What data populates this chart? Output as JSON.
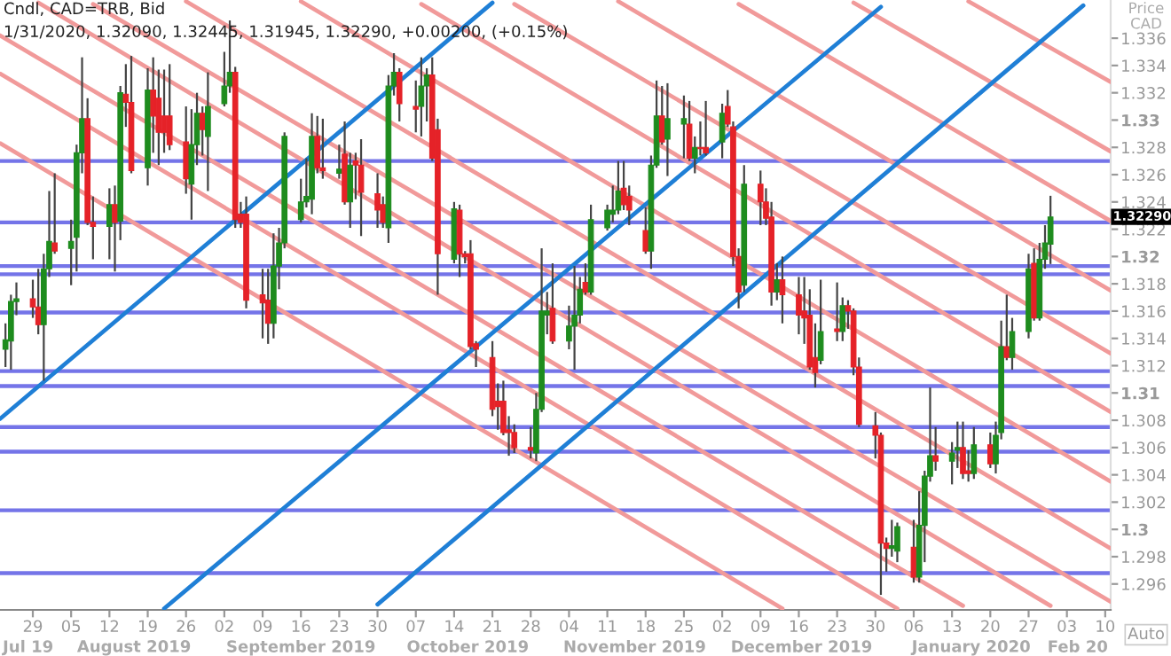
{
  "chart_data": {
    "type": "candlestick",
    "title": "Cndl, CAD=TRB, Bid",
    "subtitle": "1/31/2020, 1.32090, 1.32445, 1.31945, 1.32290, +0.00200, (+0.15%)",
    "ylabel": "Price\nCAD",
    "x": [
      "2019-07-24",
      "2019-07-25",
      "2019-07-26",
      "2019-07-29",
      "2019-07-30",
      "2019-07-31",
      "2019-08-01",
      "2019-08-02",
      "2019-08-05",
      "2019-08-06",
      "2019-08-07",
      "2019-08-08",
      "2019-08-09",
      "2019-08-12",
      "2019-08-13",
      "2019-08-14",
      "2019-08-15",
      "2019-08-16",
      "2019-08-19",
      "2019-08-20",
      "2019-08-21",
      "2019-08-22",
      "2019-08-23",
      "2019-08-26",
      "2019-08-27",
      "2019-08-28",
      "2019-08-29",
      "2019-08-30",
      "2019-09-02",
      "2019-09-03",
      "2019-09-04",
      "2019-09-05",
      "2019-09-06",
      "2019-09-09",
      "2019-09-10",
      "2019-09-11",
      "2019-09-12",
      "2019-09-13",
      "2019-09-16",
      "2019-09-17",
      "2019-09-18",
      "2019-09-19",
      "2019-09-20",
      "2019-09-23",
      "2019-09-24",
      "2019-09-25",
      "2019-09-26",
      "2019-09-27",
      "2019-09-30",
      "2019-10-01",
      "2019-10-02",
      "2019-10-03",
      "2019-10-04",
      "2019-10-07",
      "2019-10-08",
      "2019-10-09",
      "2019-10-10",
      "2019-10-11",
      "2019-10-14",
      "2019-10-15",
      "2019-10-16",
      "2019-10-17",
      "2019-10-18",
      "2019-10-21",
      "2019-10-22",
      "2019-10-23",
      "2019-10-24",
      "2019-10-25",
      "2019-10-28",
      "2019-10-29",
      "2019-10-30",
      "2019-10-31",
      "2019-11-01",
      "2019-11-04",
      "2019-11-05",
      "2019-11-06",
      "2019-11-07",
      "2019-11-08",
      "2019-11-11",
      "2019-11-12",
      "2019-11-13",
      "2019-11-14",
      "2019-11-15",
      "2019-11-18",
      "2019-11-19",
      "2019-11-20",
      "2019-11-21",
      "2019-11-22",
      "2019-11-25",
      "2019-11-26",
      "2019-11-27",
      "2019-11-28",
      "2019-11-29",
      "2019-12-02",
      "2019-12-03",
      "2019-12-04",
      "2019-12-05",
      "2019-12-06",
      "2019-12-09",
      "2019-12-10",
      "2019-12-11",
      "2019-12-12",
      "2019-12-13",
      "2019-12-16",
      "2019-12-17",
      "2019-12-18",
      "2019-12-19",
      "2019-12-20",
      "2019-12-23",
      "2019-12-24",
      "2019-12-25",
      "2019-12-26",
      "2019-12-27",
      "2019-12-30",
      "2019-12-31",
      "2020-01-01",
      "2020-01-02",
      "2020-01-03",
      "2020-01-06",
      "2020-01-07",
      "2020-01-08",
      "2020-01-09",
      "2020-01-10",
      "2020-01-13",
      "2020-01-14",
      "2020-01-15",
      "2020-01-16",
      "2020-01-17",
      "2020-01-20",
      "2020-01-21",
      "2020-01-22",
      "2020-01-23",
      "2020-01-24",
      "2020-01-27",
      "2020-01-28",
      "2020-01-29",
      "2020-01-30",
      "2020-01-31"
    ],
    "ohlc": [
      [
        1.3132,
        1.3151,
        1.3119,
        1.3139
      ],
      [
        1.3138,
        1.3172,
        1.3117,
        1.3167
      ],
      [
        1.3167,
        1.3181,
        1.3157,
        1.3169
      ],
      [
        1.3169,
        1.3183,
        1.3155,
        1.3163
      ],
      [
        1.3163,
        1.3191,
        1.3143,
        1.315
      ],
      [
        1.315,
        1.3202,
        1.3109,
        1.3191
      ],
      [
        1.3191,
        1.3248,
        1.3185,
        1.3211
      ],
      [
        1.321,
        1.3261,
        1.3202,
        1.3204
      ],
      [
        1.3206,
        1.3227,
        1.3179,
        1.3211
      ],
      [
        1.3214,
        1.3282,
        1.3189,
        1.3276
      ],
      [
        1.3276,
        1.3346,
        1.3261,
        1.3301
      ],
      [
        1.3301,
        1.3316,
        1.3223,
        1.3225
      ],
      [
        1.3225,
        1.3244,
        1.3198,
        1.3222
      ],
      [
        1.3222,
        1.325,
        1.3198,
        1.3238
      ],
      [
        1.3238,
        1.3252,
        1.3189,
        1.3225
      ],
      [
        1.3226,
        1.3325,
        1.3212,
        1.332
      ],
      [
        1.3319,
        1.3341,
        1.3295,
        1.3313
      ],
      [
        1.3313,
        1.3347,
        1.3261,
        1.3263
      ],
      [
        1.3265,
        1.3338,
        1.3252,
        1.3322
      ],
      [
        1.3322,
        1.3346,
        1.3276,
        1.3303
      ],
      [
        1.3316,
        1.3337,
        1.3267,
        1.3291
      ],
      [
        1.3303,
        1.3337,
        1.3276,
        1.3291
      ],
      [
        1.3303,
        1.3341,
        1.3278,
        1.3282
      ],
      [
        1.3284,
        1.331,
        1.3246,
        1.3257
      ],
      [
        1.3253,
        1.3308,
        1.3227,
        1.3282
      ],
      [
        1.3282,
        1.332,
        1.3267,
        1.3305
      ],
      [
        1.3305,
        1.331,
        1.3274,
        1.3293
      ],
      [
        1.3288,
        1.3335,
        1.3248,
        1.331
      ],
      [
        1.3312,
        1.335,
        1.331,
        1.3325
      ],
      [
        1.3325,
        1.3373,
        1.332,
        1.3335
      ],
      [
        1.3335,
        1.3339,
        1.3221,
        1.3227
      ],
      [
        1.3231,
        1.324,
        1.3221,
        1.3225
      ],
      [
        1.3231,
        1.3244,
        1.3162,
        1.3168
      ],
      [
        1.3172,
        1.3191,
        1.314,
        1.3166
      ],
      [
        1.3168,
        1.3191,
        1.3136,
        1.3151
      ],
      [
        1.3151,
        1.3217,
        1.314,
        1.3193
      ],
      [
        1.3193,
        1.3221,
        1.3176,
        1.321
      ],
      [
        1.321,
        1.3291,
        1.3206,
        1.3288
      ],
      [
        1.3227,
        1.3257,
        1.3225,
        1.324
      ],
      [
        1.324,
        1.3272,
        1.3236,
        1.3244
      ],
      [
        1.3242,
        1.3305,
        1.3231,
        1.3288
      ],
      [
        1.3288,
        1.3303,
        1.3261,
        1.3265
      ],
      [
        1.3265,
        1.3301,
        1.3257,
        1.3263
      ],
      [
        1.3261,
        1.3282,
        1.3257,
        1.3264
      ],
      [
        1.3275,
        1.3299,
        1.3238,
        1.324
      ],
      [
        1.324,
        1.3276,
        1.3221,
        1.3267
      ],
      [
        1.327,
        1.3276,
        1.3242,
        1.3267
      ],
      [
        1.3267,
        1.3286,
        1.3215,
        1.3247
      ],
      [
        1.3246,
        1.3261,
        1.3221,
        1.3234
      ],
      [
        1.3238,
        1.3244,
        1.3221,
        1.3225
      ],
      [
        1.3221,
        1.3333,
        1.321,
        1.3325
      ],
      [
        1.3325,
        1.3349,
        1.3318,
        1.3335
      ],
      [
        1.3335,
        1.3338,
        1.3299,
        1.3312
      ],
      [
        1.331,
        1.3329,
        1.3291,
        1.3308
      ],
      [
        1.331,
        1.3346,
        1.3288,
        1.3325
      ],
      [
        1.3325,
        1.3338,
        1.3299,
        1.3333
      ],
      [
        1.3333,
        1.3346,
        1.327,
        1.3272
      ],
      [
        1.3293,
        1.3301,
        1.3172,
        1.3202
      ],
      [
        1.3198,
        1.324,
        1.3195,
        1.3235
      ],
      [
        1.3234,
        1.3238,
        1.3185,
        1.3202
      ],
      [
        1.3202,
        1.3204,
        1.3195,
        1.32
      ],
      [
        1.3202,
        1.3212,
        1.3132,
        1.3134
      ],
      [
        1.3136,
        1.3138,
        1.3119,
        1.3132
      ],
      [
        1.3126,
        1.3138,
        1.3083,
        1.3088
      ],
      [
        1.3094,
        1.3107,
        1.3073,
        1.309
      ],
      [
        1.3094,
        1.3109,
        1.3069,
        1.3071
      ],
      [
        1.3073,
        1.3083,
        1.3054,
        1.3071
      ],
      [
        1.3071,
        1.3077,
        1.3056,
        1.306
      ],
      [
        1.306,
        1.3075,
        1.3052,
        1.3058
      ],
      [
        1.3056,
        1.31,
        1.305,
        1.3088
      ],
      [
        1.3088,
        1.3206,
        1.3086,
        1.316
      ],
      [
        1.3157,
        1.3174,
        1.3143,
        1.316
      ],
      [
        1.3162,
        1.3195,
        1.3136,
        1.3138
      ],
      [
        1.3138,
        1.3164,
        1.3132,
        1.3149
      ],
      [
        1.3149,
        1.3193,
        1.3117,
        1.3157
      ],
      [
        1.3157,
        1.3185,
        1.3151,
        1.3176
      ],
      [
        1.3181,
        1.3195,
        1.3172,
        1.3174
      ],
      [
        1.3174,
        1.3238,
        1.3172,
        1.3227
      ],
      [
        1.3221,
        1.3238,
        1.3219,
        1.3234
      ],
      [
        1.3231,
        1.3252,
        1.3225,
        1.3234
      ],
      [
        1.3234,
        1.327,
        1.3231,
        1.3248
      ],
      [
        1.325,
        1.327,
        1.3234,
        1.3238
      ],
      [
        1.3244,
        1.3252,
        1.3223,
        1.3234
      ],
      [
        1.3219,
        1.3236,
        1.3202,
        1.3204
      ],
      [
        1.3204,
        1.3274,
        1.3191,
        1.3267
      ],
      [
        1.3267,
        1.3329,
        1.3265,
        1.3303
      ],
      [
        1.3303,
        1.3325,
        1.3282,
        1.3284
      ],
      [
        1.3286,
        1.3327,
        1.3259,
        1.3301
      ],
      [
        1.3297,
        1.3318,
        1.3272,
        1.3301
      ],
      [
        1.3297,
        1.3314,
        1.327,
        1.3272
      ],
      [
        1.3272,
        1.3288,
        1.3261,
        1.328
      ],
      [
        1.328,
        1.3299,
        1.3274,
        1.3279
      ],
      [
        1.328,
        1.3314,
        1.3274,
        1.3276
      ],
      [
        1.3284,
        1.3312,
        1.3272,
        1.3305
      ],
      [
        1.331,
        1.3322,
        1.3295,
        1.3297
      ],
      [
        1.3295,
        1.3299,
        1.3193,
        1.32
      ],
      [
        1.32,
        1.3206,
        1.3162,
        1.3174
      ],
      [
        1.3179,
        1.3267,
        1.3174,
        1.3253
      ],
      [
        1.3253,
        1.3263,
        1.3223,
        1.324
      ],
      [
        1.324,
        1.325,
        1.3223,
        1.3228
      ],
      [
        1.3229,
        1.324,
        1.3164,
        1.3174
      ],
      [
        1.3174,
        1.3195,
        1.3168,
        1.3183
      ],
      [
        1.3183,
        1.32,
        1.3151,
        1.3172
      ],
      [
        1.3172,
        1.3185,
        1.3143,
        1.3157
      ],
      [
        1.316,
        1.3185,
        1.3136,
        1.3155
      ],
      [
        1.3157,
        1.3176,
        1.3117,
        1.3119
      ],
      [
        1.3126,
        1.3151,
        1.3104,
        1.3115
      ],
      [
        1.3124,
        1.3183,
        1.3121,
        1.3145
      ],
      [
        1.3147,
        1.3181,
        1.3138,
        1.3145
      ],
      [
        1.3145,
        1.317,
        1.3138,
        1.3164
      ],
      [
        1.3164,
        1.3168,
        1.3147,
        1.316
      ],
      [
        1.316,
        1.3162,
        1.3113,
        1.3119
      ],
      [
        1.3119,
        1.3126,
        1.3075,
        1.3077
      ],
      [
        1.3076,
        1.3086,
        1.3052,
        1.3069
      ],
      [
        1.3069,
        1.3071,
        1.2952,
        1.299
      ],
      [
        1.299,
        1.2994,
        1.2969,
        1.2986
      ],
      [
        1.2986,
        1.3007,
        1.298,
        1.2988
      ],
      [
        1.2984,
        1.3005,
        1.2976,
        1.3002
      ],
      [
        1.2987,
        1.3007,
        1.2961,
        1.2965
      ],
      [
        1.2965,
        1.3028,
        1.2961,
        1.3003
      ],
      [
        1.3003,
        1.3043,
        1.2976,
        1.3039
      ],
      [
        1.3039,
        1.3104,
        1.3035,
        1.3054
      ],
      [
        1.3054,
        1.3075,
        1.3043,
        1.305
      ],
      [
        1.305,
        1.3064,
        1.3033,
        1.3056
      ],
      [
        1.3058,
        1.3079,
        1.3045,
        1.306
      ],
      [
        1.306,
        1.3079,
        1.3037,
        1.3041
      ],
      [
        1.3043,
        1.3058,
        1.3035,
        1.3041
      ],
      [
        1.3041,
        1.3075,
        1.3037,
        1.3062
      ],
      [
        1.3062,
        1.3071,
        1.3045,
        1.3048
      ],
      [
        1.3048,
        1.3079,
        1.3041,
        1.3069
      ],
      [
        1.3071,
        1.3153,
        1.3066,
        1.3134
      ],
      [
        1.3134,
        1.3172,
        1.3124,
        1.3126
      ],
      [
        1.3126,
        1.3155,
        1.3117,
        1.3145
      ],
      [
        1.3145,
        1.3202,
        1.314,
        1.3191
      ],
      [
        1.3195,
        1.3206,
        1.3153,
        1.3155
      ],
      [
        1.3155,
        1.321,
        1.3153,
        1.3198
      ],
      [
        1.3198,
        1.3223,
        1.3191,
        1.321
      ],
      [
        1.3209,
        1.32445,
        1.31945,
        1.3229
      ]
    ],
    "series": [
      {
        "type": "line",
        "color": "#f19a9a",
        "x": [
          "2019-07-23",
          "2019-12-13"
        ],
        "values": [
          1.3283,
          1.2942
        ]
      },
      {
        "type": "line",
        "color": "#f19a9a",
        "x": [
          "2019-07-23",
          "2020-01-03"
        ],
        "values": [
          1.3334,
          1.2942
        ]
      },
      {
        "type": "line",
        "color": "#f19a9a",
        "x": [
          "2019-07-23",
          "2020-01-15"
        ],
        "values": [
          1.3362,
          1.2944
        ]
      },
      {
        "type": "line",
        "color": "#f19a9a",
        "x": [
          "2019-07-30",
          "2020-01-31"
        ],
        "values": [
          1.3386,
          1.2944
        ]
      },
      {
        "type": "line",
        "color": "#f19a9a",
        "x": [
          "2019-08-09",
          "2020-02-11"
        ],
        "values": [
          1.3385,
          1.2947
        ]
      },
      {
        "type": "line",
        "color": "#f19a9a",
        "x": [
          "2019-08-26",
          "2020-02-11"
        ],
        "values": [
          1.3387,
          1.2986
        ]
      },
      {
        "type": "line",
        "color": "#f19a9a",
        "x": [
          "2019-09-16",
          "2020-02-11"
        ],
        "values": [
          1.3387,
          1.3035
        ]
      },
      {
        "type": "line",
        "color": "#f19a9a",
        "x": [
          "2019-10-08",
          "2020-02-11"
        ],
        "values": [
          1.3385,
          1.3086
        ]
      },
      {
        "type": "line",
        "color": "#f19a9a",
        "x": [
          "2019-10-25",
          "2020-02-11"
        ],
        "values": [
          1.3385,
          1.3129
        ]
      },
      {
        "type": "line",
        "color": "#f19a9a",
        "x": [
          "2019-11-13",
          "2020-02-11"
        ],
        "values": [
          1.3387,
          1.3175
        ]
      },
      {
        "type": "line",
        "color": "#f19a9a",
        "x": [
          "2019-12-05",
          "2020-02-11"
        ],
        "values": [
          1.3385,
          1.3226
        ]
      },
      {
        "type": "line",
        "color": "#f19a9a",
        "x": [
          "2019-12-26",
          "2020-02-11"
        ],
        "values": [
          1.3386,
          1.3277
        ]
      },
      {
        "type": "line",
        "color": "#f19a9a",
        "x": [
          "2020-01-16",
          "2020-02-11"
        ],
        "values": [
          1.3387,
          1.3328
        ]
      },
      {
        "type": "line",
        "color": "#1f7fd6",
        "x": [
          "2019-07-23",
          "2019-10-21"
        ],
        "values": [
          1.3081,
          1.3386
        ]
      },
      {
        "type": "line",
        "color": "#1f7fd6",
        "x": [
          "2019-08-22",
          "2019-12-31"
        ],
        "values": [
          1.2942,
          1.3383
        ]
      },
      {
        "type": "line",
        "color": "#1f7fd6",
        "x": [
          "2019-09-30",
          "2020-02-06"
        ],
        "values": [
          1.2945,
          1.3384
        ]
      }
    ],
    "ref_lines": [
      {
        "axis": "y",
        "value": 1.327,
        "color": "#7474e8"
      },
      {
        "axis": "y",
        "value": 1.3225,
        "color": "#7474e8"
      },
      {
        "axis": "y",
        "value": 1.3193,
        "color": "#7474e8"
      },
      {
        "axis": "y",
        "value": 1.3187,
        "color": "#7474e8"
      },
      {
        "axis": "y",
        "value": 1.3159,
        "color": "#7474e8"
      },
      {
        "axis": "y",
        "value": 1.3116,
        "color": "#7474e8"
      },
      {
        "axis": "y",
        "value": 1.3105,
        "color": "#7474e8"
      },
      {
        "axis": "y",
        "value": 1.3075,
        "color": "#7474e8"
      },
      {
        "axis": "y",
        "value": 1.3057,
        "color": "#7474e8"
      },
      {
        "axis": "y",
        "value": 1.3014,
        "color": "#7474e8"
      },
      {
        "axis": "y",
        "value": 1.2968,
        "color": "#7474e8"
      }
    ],
    "xlim": [
      "2019-07-23",
      "2020-02-11"
    ],
    "xticks": [
      {
        "value": "2019-07-29",
        "label": "29"
      },
      {
        "value": "2019-08-05",
        "label": "05"
      },
      {
        "value": "2019-08-12",
        "label": "12"
      },
      {
        "value": "2019-08-19",
        "label": "19"
      },
      {
        "value": "2019-08-26",
        "label": "26"
      },
      {
        "value": "2019-09-02",
        "label": "02"
      },
      {
        "value": "2019-09-09",
        "label": "09"
      },
      {
        "value": "2019-09-16",
        "label": "16"
      },
      {
        "value": "2019-09-23",
        "label": "23"
      },
      {
        "value": "2019-09-30",
        "label": "30"
      },
      {
        "value": "2019-10-07",
        "label": "07"
      },
      {
        "value": "2019-10-14",
        "label": "14"
      },
      {
        "value": "2019-10-21",
        "label": "21"
      },
      {
        "value": "2019-10-28",
        "label": "28"
      },
      {
        "value": "2019-11-04",
        "label": "04"
      },
      {
        "value": "2019-11-11",
        "label": "11"
      },
      {
        "value": "2019-11-18",
        "label": "18"
      },
      {
        "value": "2019-11-25",
        "label": "25"
      },
      {
        "value": "2019-12-02",
        "label": "02"
      },
      {
        "value": "2019-12-09",
        "label": "09"
      },
      {
        "value": "2019-12-16",
        "label": "16"
      },
      {
        "value": "2019-12-23",
        "label": "23"
      },
      {
        "value": "2019-12-30",
        "label": "30"
      },
      {
        "value": "2020-01-06",
        "label": "06"
      },
      {
        "value": "2020-01-13",
        "label": "13"
      },
      {
        "value": "2020-01-20",
        "label": "20"
      },
      {
        "value": "2020-01-27",
        "label": "27"
      },
      {
        "value": "2020-02-03",
        "label": "03"
      },
      {
        "value": "2020-02-10",
        "label": "10"
      }
    ],
    "ylim": [
      1.2941,
      1.3388
    ],
    "yticks": [
      1.296,
      1.298,
      1.3,
      1.302,
      1.304,
      1.306,
      1.308,
      1.31,
      1.312,
      1.314,
      1.316,
      1.318,
      1.32,
      1.322,
      1.324,
      1.326,
      1.328,
      1.33,
      1.332,
      1.334,
      1.336
    ],
    "annotations": [
      "Jul 19",
      "August 2019",
      "September 2019",
      "October 2019",
      "November 2019",
      "December 2019",
      "January 2020",
      "Feb 20",
      "1.32290",
      "Auto"
    ],
    "grid": false
  }
}
